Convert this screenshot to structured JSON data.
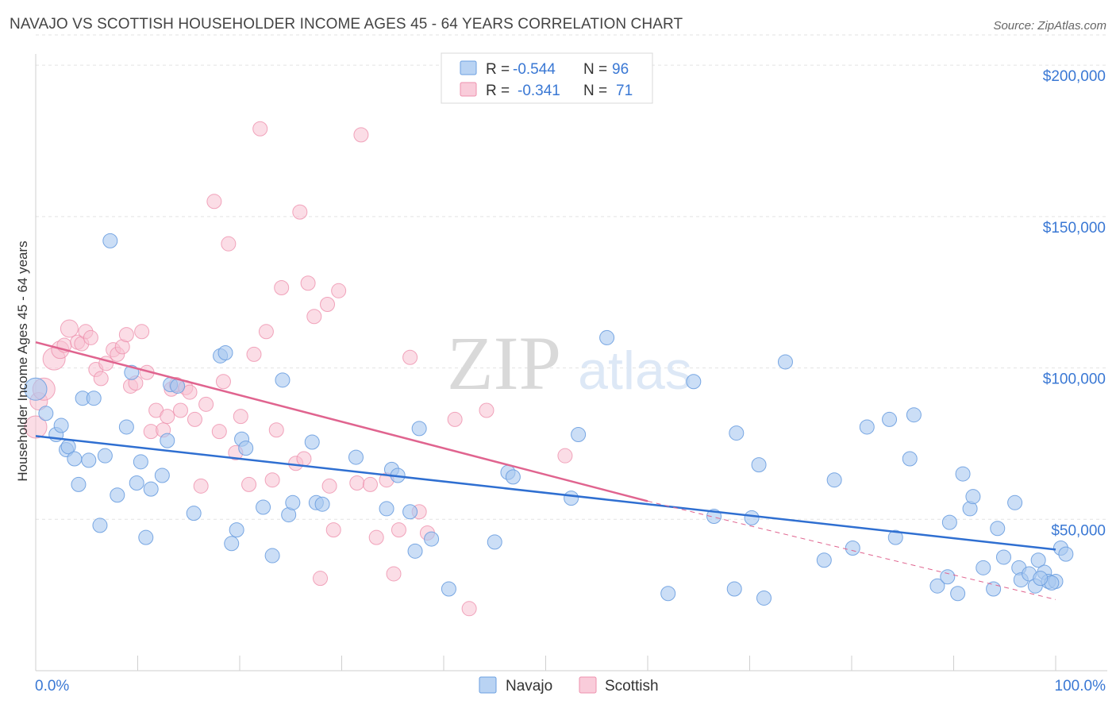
{
  "header": {
    "title": "NAVAJO VS SCOTTISH HOUSEHOLDER INCOME AGES 45 - 64 YEARS CORRELATION CHART",
    "source": "Source: ZipAtlas.com"
  },
  "legend_top": {
    "rows": [
      {
        "r_label": "R =",
        "r_value": "-0.544",
        "n_label": "N =",
        "n_value": "96"
      },
      {
        "r_label": "R =",
        "r_value": "-0.341",
        "n_label": "N =",
        "n_value": "71"
      }
    ]
  },
  "legend_bottom": [
    "Navajo",
    "Scottish"
  ],
  "watermark": {
    "zip": "ZIP",
    "atlas": "atlas"
  },
  "colors": {
    "navajo_fill": "#a9c8f0",
    "navajo_stroke": "#6b9fe0",
    "navajo_line": "#2f6fd1",
    "scottish_fill": "#f7c1d1",
    "scottish_stroke": "#ee90ad",
    "scottish_line": "#e0648f",
    "value_text": "#3a78d4"
  },
  "chart_data": {
    "type": "scatter",
    "title": "NAVAJO VS SCOTTISH HOUSEHOLDER INCOME AGES 45 - 64 YEARS CORRELATION CHART",
    "xlabel": "",
    "ylabel": "Householder Income Ages 45 - 64 years",
    "xlim": [
      0,
      100
    ],
    "ylim": [
      0,
      210000
    ],
    "x_tick_labels": [
      "0.0%",
      "100.0%"
    ],
    "y_ticks": [
      50000,
      100000,
      150000,
      200000
    ],
    "y_tick_labels": [
      "$50,000",
      "$100,000",
      "$150,000",
      "$200,000"
    ],
    "grid": true,
    "legend": "top-center",
    "series": [
      {
        "name": "Navajo",
        "R": -0.544,
        "N": 96,
        "trend": {
          "x": [
            0,
            100
          ],
          "y": [
            77500,
            40000
          ]
        },
        "points": [
          [
            0,
            93000,
            14
          ],
          [
            1,
            85000,
            9
          ],
          [
            2,
            78000,
            9
          ],
          [
            2.5,
            81000,
            9
          ],
          [
            3,
            73000,
            9
          ],
          [
            3.2,
            74000,
            9
          ],
          [
            3.8,
            70000,
            9
          ],
          [
            4.2,
            61500,
            9
          ],
          [
            4.6,
            90000,
            9
          ],
          [
            5.2,
            69500,
            9
          ],
          [
            5.7,
            90000,
            9
          ],
          [
            6.3,
            48000,
            9
          ],
          [
            6.8,
            71000,
            9
          ],
          [
            7.3,
            142000,
            9
          ],
          [
            8.0,
            58000,
            9
          ],
          [
            8.9,
            80500,
            9
          ],
          [
            9.4,
            98500,
            9
          ],
          [
            9.9,
            62000,
            9
          ],
          [
            10.3,
            69000,
            9
          ],
          [
            10.8,
            44000,
            9
          ],
          [
            11.3,
            60000,
            9
          ],
          [
            12.4,
            64500,
            9
          ],
          [
            12.9,
            76000,
            9
          ],
          [
            13.2,
            94500,
            9
          ],
          [
            13.9,
            94000,
            9
          ],
          [
            15.5,
            52000,
            9
          ],
          [
            18.1,
            104000,
            9
          ],
          [
            18.6,
            105000,
            9
          ],
          [
            19.2,
            42000,
            9
          ],
          [
            19.7,
            46500,
            9
          ],
          [
            20.2,
            76500,
            9
          ],
          [
            20.6,
            73500,
            9
          ],
          [
            22.3,
            54000,
            9
          ],
          [
            23.2,
            38000,
            9
          ],
          [
            24.2,
            96000,
            9
          ],
          [
            24.8,
            51500,
            9
          ],
          [
            25.2,
            55500,
            9
          ],
          [
            27.1,
            75500,
            9
          ],
          [
            27.5,
            55500,
            9
          ],
          [
            28.1,
            55000,
            9
          ],
          [
            31.4,
            70500,
            9
          ],
          [
            34.4,
            53500,
            9
          ],
          [
            34.9,
            66500,
            9
          ],
          [
            35.5,
            64500,
            9
          ],
          [
            36.7,
            52500,
            9
          ],
          [
            37.2,
            39500,
            9
          ],
          [
            37.6,
            80000,
            9
          ],
          [
            38.8,
            43500,
            9
          ],
          [
            40.5,
            27000,
            9
          ],
          [
            45.0,
            42500,
            9
          ],
          [
            46.3,
            65500,
            9
          ],
          [
            46.8,
            64000,
            9
          ],
          [
            52.5,
            57000,
            9
          ],
          [
            53.2,
            78000,
            9
          ],
          [
            56.0,
            110000,
            9
          ],
          [
            62.0,
            25500,
            9
          ],
          [
            64.5,
            95500,
            9
          ],
          [
            66.5,
            51000,
            9
          ],
          [
            68.5,
            27000,
            9
          ],
          [
            68.7,
            78500,
            9
          ],
          [
            70.2,
            50500,
            9
          ],
          [
            70.9,
            68000,
            9
          ],
          [
            71.4,
            24000,
            9
          ],
          [
            73.5,
            102000,
            9
          ],
          [
            77.3,
            36500,
            9
          ],
          [
            78.3,
            63000,
            9
          ],
          [
            80.1,
            40500,
            9
          ],
          [
            81.5,
            80500,
            9
          ],
          [
            83.7,
            83000,
            9
          ],
          [
            84.3,
            44000,
            9
          ],
          [
            85.7,
            70000,
            9
          ],
          [
            86.1,
            84500,
            9
          ],
          [
            88.4,
            28000,
            9
          ],
          [
            89.4,
            31000,
            9
          ],
          [
            89.6,
            49000,
            9
          ],
          [
            90.4,
            25500,
            9
          ],
          [
            90.9,
            65000,
            9
          ],
          [
            91.6,
            53500,
            9
          ],
          [
            91.9,
            57500,
            9
          ],
          [
            92.9,
            34000,
            9
          ],
          [
            93.9,
            27000,
            9
          ],
          [
            94.3,
            47000,
            9
          ],
          [
            94.9,
            37500,
            9
          ],
          [
            96.4,
            34000,
            9
          ],
          [
            96.6,
            30000,
            9
          ],
          [
            97.4,
            32000,
            9
          ],
          [
            98.0,
            28000,
            9
          ],
          [
            98.3,
            36500,
            9
          ],
          [
            98.9,
            32500,
            9
          ],
          [
            99.3,
            29500,
            9
          ],
          [
            100.0,
            29500,
            9
          ],
          [
            99.6,
            29000,
            9
          ],
          [
            100.5,
            40500,
            9
          ],
          [
            101.0,
            38500,
            9
          ],
          [
            96.0,
            55500,
            9
          ],
          [
            98.5,
            30500,
            9
          ]
        ]
      },
      {
        "name": "Scottish",
        "R": -0.341,
        "N": 71,
        "trend": {
          "x": [
            0,
            60
          ],
          "y": [
            108500,
            56000
          ]
        },
        "trend_extension": {
          "x": [
            60,
            100
          ],
          "y": [
            56000,
            23500
          ]
        },
        "points": [
          [
            0,
            80500,
            14
          ],
          [
            0.3,
            89000,
            11
          ],
          [
            0.8,
            93000,
            14
          ],
          [
            1.8,
            103000,
            14
          ],
          [
            2.4,
            106000,
            11
          ],
          [
            2.8,
            107500,
            9
          ],
          [
            3.3,
            113000,
            11
          ],
          [
            4.1,
            108500,
            9
          ],
          [
            4.5,
            108000,
            9
          ],
          [
            4.9,
            112000,
            9
          ],
          [
            5.4,
            110000,
            9
          ],
          [
            5.9,
            99500,
            9
          ],
          [
            6.4,
            96500,
            9
          ],
          [
            6.9,
            101500,
            9
          ],
          [
            7.6,
            106000,
            9
          ],
          [
            8.0,
            104500,
            9
          ],
          [
            8.5,
            107000,
            9
          ],
          [
            8.9,
            111000,
            9
          ],
          [
            9.3,
            94000,
            9
          ],
          [
            9.8,
            95000,
            9
          ],
          [
            10.4,
            112000,
            9
          ],
          [
            10.9,
            98500,
            9
          ],
          [
            11.3,
            79000,
            9
          ],
          [
            11.8,
            86000,
            9
          ],
          [
            12.5,
            79500,
            9
          ],
          [
            12.9,
            84000,
            9
          ],
          [
            13.3,
            93000,
            9
          ],
          [
            13.8,
            94500,
            9
          ],
          [
            14.2,
            86000,
            9
          ],
          [
            14.7,
            93500,
            9
          ],
          [
            15.1,
            92000,
            9
          ],
          [
            15.6,
            83000,
            9
          ],
          [
            16.2,
            61000,
            9
          ],
          [
            16.7,
            88000,
            9
          ],
          [
            17.5,
            155000,
            9
          ],
          [
            18.0,
            79000,
            9
          ],
          [
            18.4,
            95500,
            9
          ],
          [
            18.9,
            141000,
            9
          ],
          [
            19.6,
            72000,
            9
          ],
          [
            20.1,
            84000,
            9
          ],
          [
            20.9,
            61500,
            9
          ],
          [
            21.4,
            104500,
            9
          ],
          [
            22.0,
            179000,
            9
          ],
          [
            22.6,
            112000,
            9
          ],
          [
            23.2,
            63000,
            9
          ],
          [
            23.6,
            79500,
            9
          ],
          [
            24.1,
            126500,
            9
          ],
          [
            25.5,
            68500,
            9
          ],
          [
            25.9,
            151500,
            9
          ],
          [
            26.3,
            70000,
            9
          ],
          [
            26.7,
            128000,
            9
          ],
          [
            27.3,
            117000,
            9
          ],
          [
            27.9,
            30500,
            9
          ],
          [
            28.6,
            121000,
            9
          ],
          [
            29.2,
            46500,
            9
          ],
          [
            29.7,
            125500,
            9
          ],
          [
            31.5,
            62000,
            9
          ],
          [
            31.9,
            177000,
            9
          ],
          [
            32.8,
            61500,
            9
          ],
          [
            33.4,
            44000,
            9
          ],
          [
            34.4,
            63000,
            9
          ],
          [
            35.1,
            32000,
            9
          ],
          [
            35.6,
            46500,
            9
          ],
          [
            36.7,
            103500,
            9
          ],
          [
            37.6,
            52500,
            9
          ],
          [
            38.4,
            45500,
            9
          ],
          [
            41.1,
            83000,
            9
          ],
          [
            42.5,
            20500,
            9
          ],
          [
            44.2,
            86000,
            9
          ],
          [
            51.9,
            71000,
            9
          ],
          [
            28.8,
            61000,
            9
          ]
        ]
      }
    ]
  }
}
